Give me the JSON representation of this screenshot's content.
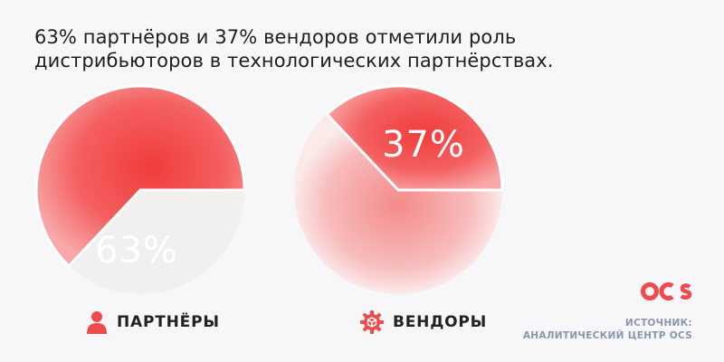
{
  "title": "63% партнёров и 37% вендоров отметили роль дистрибьюторов в технологических партнёрствах.",
  "colors": {
    "accent": "#f04a4a",
    "soft": "#f8b7b7",
    "muted": "#eeeeee"
  },
  "icons": {
    "partners": "person-icon",
    "vendors": "gear-box-icon",
    "brand": "ocs-logo-icon"
  },
  "chart_data": [
    {
      "type": "pie",
      "title": "",
      "categories": [
        "ПАРТНЁРЫ"
      ],
      "values": [
        63
      ],
      "unit": "%",
      "label": "63%",
      "legend": "ПАРТНЁРЫ"
    },
    {
      "type": "pie",
      "title": "",
      "categories": [
        "ВЕНДОРЫ"
      ],
      "values": [
        37
      ],
      "unit": "%",
      "label": "37%",
      "legend": "ВЕНДОРЫ"
    }
  ],
  "source": {
    "line1": "ИСТОЧНИК:",
    "line2": "АНАЛИТИЧЕСКИЙ ЦЕНТР OCS"
  }
}
